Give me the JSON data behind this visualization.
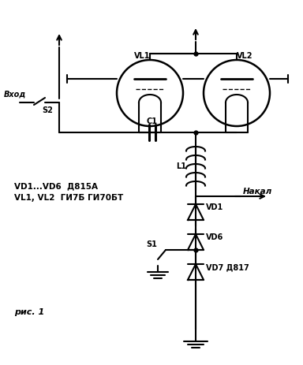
{
  "bg_color": "#ffffff",
  "line_color": "#000000",
  "labels": {
    "vl1": "VL1",
    "vl2": "VL2",
    "s2": "S2",
    "c1": "C1",
    "l1": "L1",
    "vd1": "VD1",
    "vd6": "VD6",
    "vd7": "VD7 Д817",
    "s1": "S1",
    "vhod": "Вход",
    "nakal": "Накал",
    "info1": "VD1...VD6  Д815А",
    "info2": "VL1, VL2  ГИ7Б ГИ70БТ",
    "ris": "рис. 1"
  },
  "figsize": [
    3.84,
    4.64
  ],
  "dpi": 100
}
